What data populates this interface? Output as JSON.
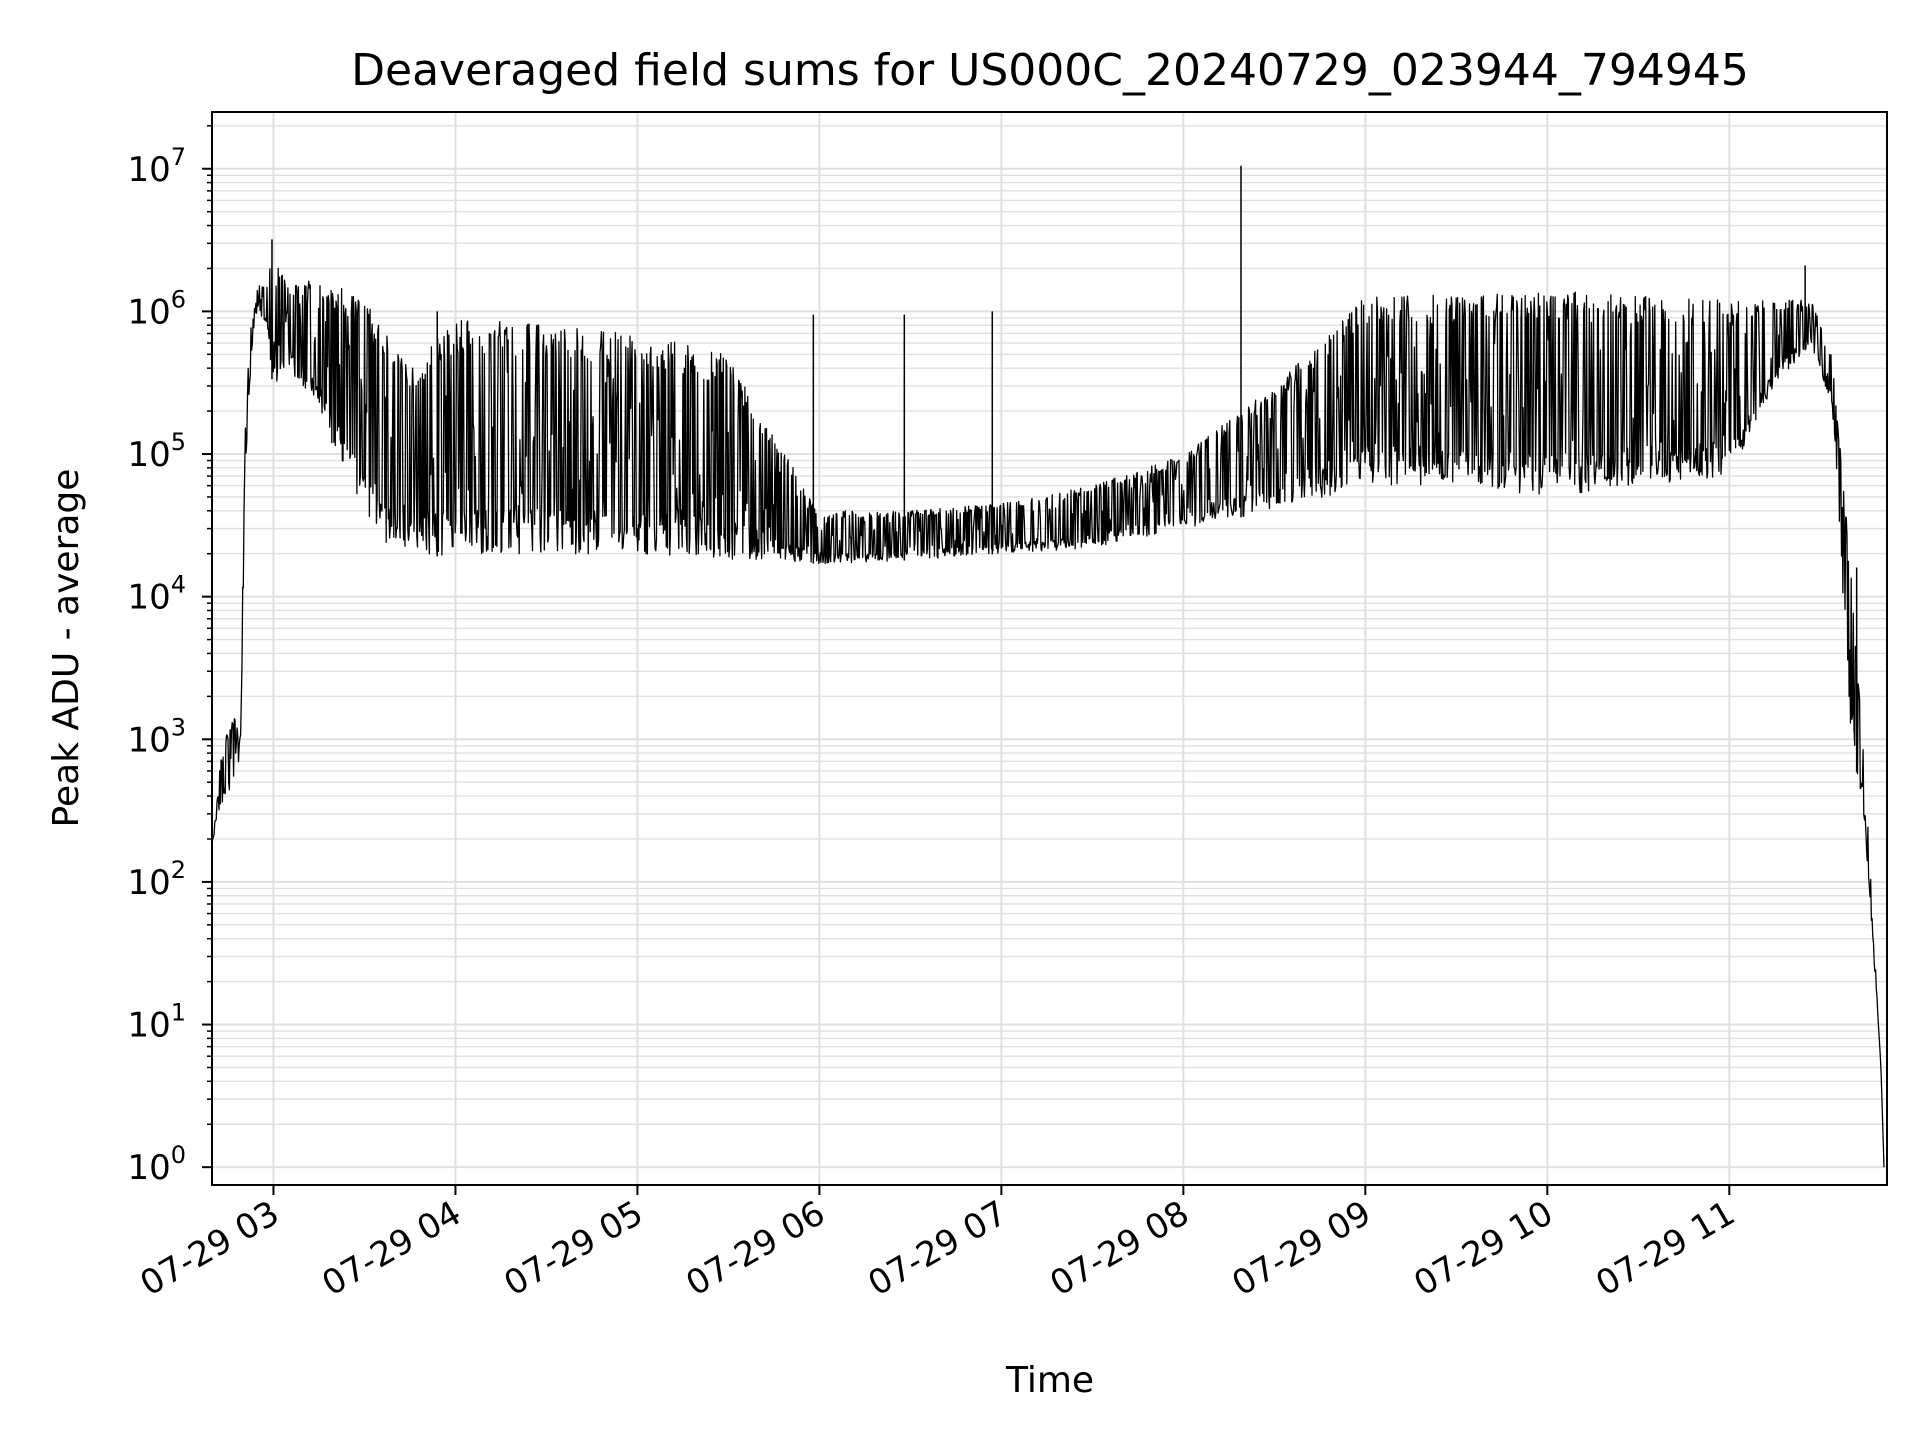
{
  "chart_data": {
    "type": "line",
    "title": "Deaveraged field sums for US000C_20240729_023944_794945",
    "xlabel": "Time",
    "ylabel": "Peak ADU - average",
    "yscale": "log",
    "ylim": [
      0.75,
      25000000
    ],
    "xlim": [
      "2024-07-29 02:39:44",
      "2024-07-29 11:52:00"
    ],
    "grid": true,
    "line_color": "#000000",
    "grid_color": "#e0e0e0",
    "x_ticks": [
      {
        "value": "2024-07-29 03:00",
        "label": "07-29 03"
      },
      {
        "value": "2024-07-29 04:00",
        "label": "07-29 04"
      },
      {
        "value": "2024-07-29 05:00",
        "label": "07-29 05"
      },
      {
        "value": "2024-07-29 06:00",
        "label": "07-29 06"
      },
      {
        "value": "2024-07-29 07:00",
        "label": "07-29 07"
      },
      {
        "value": "2024-07-29 08:00",
        "label": "07-29 08"
      },
      {
        "value": "2024-07-29 09:00",
        "label": "07-29 09"
      },
      {
        "value": "2024-07-29 10:00",
        "label": "07-29 10"
      },
      {
        "value": "2024-07-29 11:00",
        "label": "07-29 11"
      }
    ],
    "y_ticks": [
      {
        "value": 1,
        "base": "10",
        "exp": "0"
      },
      {
        "value": 10,
        "base": "10",
        "exp": "1"
      },
      {
        "value": 100,
        "base": "10",
        "exp": "2"
      },
      {
        "value": 1000,
        "base": "10",
        "exp": "3"
      },
      {
        "value": 10000,
        "base": "10",
        "exp": "4"
      },
      {
        "value": 100000,
        "base": "10",
        "exp": "5"
      },
      {
        "value": 1000000,
        "base": "10",
        "exp": "6"
      },
      {
        "value": 10000000,
        "base": "10",
        "exp": "7"
      }
    ],
    "series": [
      {
        "envelope": [
          {
            "x": "2024-07-29 02:39:44",
            "low": 180,
            "high": 180
          },
          {
            "x": "2024-07-29 02:43:00",
            "low": 350,
            "high": 900
          },
          {
            "x": "2024-07-29 02:47:00",
            "low": 500,
            "high": 1500
          },
          {
            "x": "2024-07-29 02:49:00",
            "low": 700,
            "high": 1200
          },
          {
            "x": "2024-07-29 02:51:00",
            "low": 100000,
            "high": 300000
          },
          {
            "x": "2024-07-29 02:53:00",
            "low": 600000,
            "high": 1000000
          },
          {
            "x": "2024-07-29 02:55:00",
            "low": 1000000,
            "high": 1600000
          },
          {
            "x": "2024-07-29 02:58:00",
            "low": 800000,
            "high": 1500000
          },
          {
            "x": "2024-07-29 03:00:00",
            "low": 250000,
            "high": 3200000
          },
          {
            "x": "2024-07-29 03:05:00",
            "low": 400000,
            "high": 1500000
          },
          {
            "x": "2024-07-29 03:15:00",
            "low": 200000,
            "high": 1700000
          },
          {
            "x": "2024-07-29 03:25:00",
            "low": 60000,
            "high": 1400000
          },
          {
            "x": "2024-07-29 03:35:00",
            "low": 25000,
            "high": 900000
          },
          {
            "x": "2024-07-29 03:45:00",
            "low": 18000,
            "high": 400000
          },
          {
            "x": "2024-07-29 04:00:00",
            "low": 20000,
            "high": 900000
          },
          {
            "x": "2024-07-29 04:30:00",
            "low": 20000,
            "high": 800000
          },
          {
            "x": "2024-07-29 05:00:00",
            "low": 20000,
            "high": 700000
          },
          {
            "x": "2024-07-29 05:30:00",
            "low": 18000,
            "high": 500000
          },
          {
            "x": "2024-07-29 06:00:00",
            "low": 17000,
            "high": 40000
          },
          {
            "x": "2024-07-29 06:30:00",
            "low": 18000,
            "high": 40000
          },
          {
            "x": "2024-07-29 07:00:00",
            "low": 20000,
            "high": 45000
          },
          {
            "x": "2024-07-29 07:30:00",
            "low": 22000,
            "high": 60000
          },
          {
            "x": "2024-07-29 08:00:00",
            "low": 30000,
            "high": 100000
          },
          {
            "x": "2024-07-29 08:30:00",
            "low": 40000,
            "high": 300000
          },
          {
            "x": "2024-07-29 09:00:00",
            "low": 60000,
            "high": 1300000
          },
          {
            "x": "2024-07-29 09:30:00",
            "low": 60000,
            "high": 1300000
          },
          {
            "x": "2024-07-29 10:00:00",
            "low": 50000,
            "high": 1400000
          },
          {
            "x": "2024-07-29 10:30:00",
            "low": 60000,
            "high": 1300000
          },
          {
            "x": "2024-07-29 11:00:00",
            "low": 70000,
            "high": 1200000
          },
          {
            "x": "2024-07-29 11:15:00",
            "low": 300000,
            "high": 1200000
          },
          {
            "x": "2024-07-29 11:27:00",
            "low": 600000,
            "high": 1200000
          },
          {
            "x": "2024-07-29 11:34:00",
            "low": 200000,
            "high": 500000
          },
          {
            "x": "2024-07-29 11:40:00",
            "low": 1200,
            "high": 16000
          },
          {
            "x": "2024-07-29 11:45:00",
            "low": 200,
            "high": 500
          },
          {
            "x": "2024-07-29 11:50:00",
            "low": 5,
            "high": 5
          },
          {
            "x": "2024-07-29 11:51:00",
            "low": 1,
            "high": 1
          }
        ],
        "tall_spikes": [
          {
            "x": "2024-07-29 02:59:30",
            "y": 3200000
          },
          {
            "x": "2024-07-29 08:19:00",
            "y": 10500000
          },
          {
            "x": "2024-07-29 11:25:00",
            "y": 2100000
          },
          {
            "x": "2024-07-29 11:42:00",
            "y": 16000
          },
          {
            "x": "2024-07-29 03:54:00",
            "y": 1000000
          },
          {
            "x": "2024-07-29 05:58:00",
            "y": 950000
          },
          {
            "x": "2024-07-29 06:28:00",
            "y": 950000
          },
          {
            "x": "2024-07-29 06:57:00",
            "y": 1000000
          }
        ]
      }
    ]
  }
}
